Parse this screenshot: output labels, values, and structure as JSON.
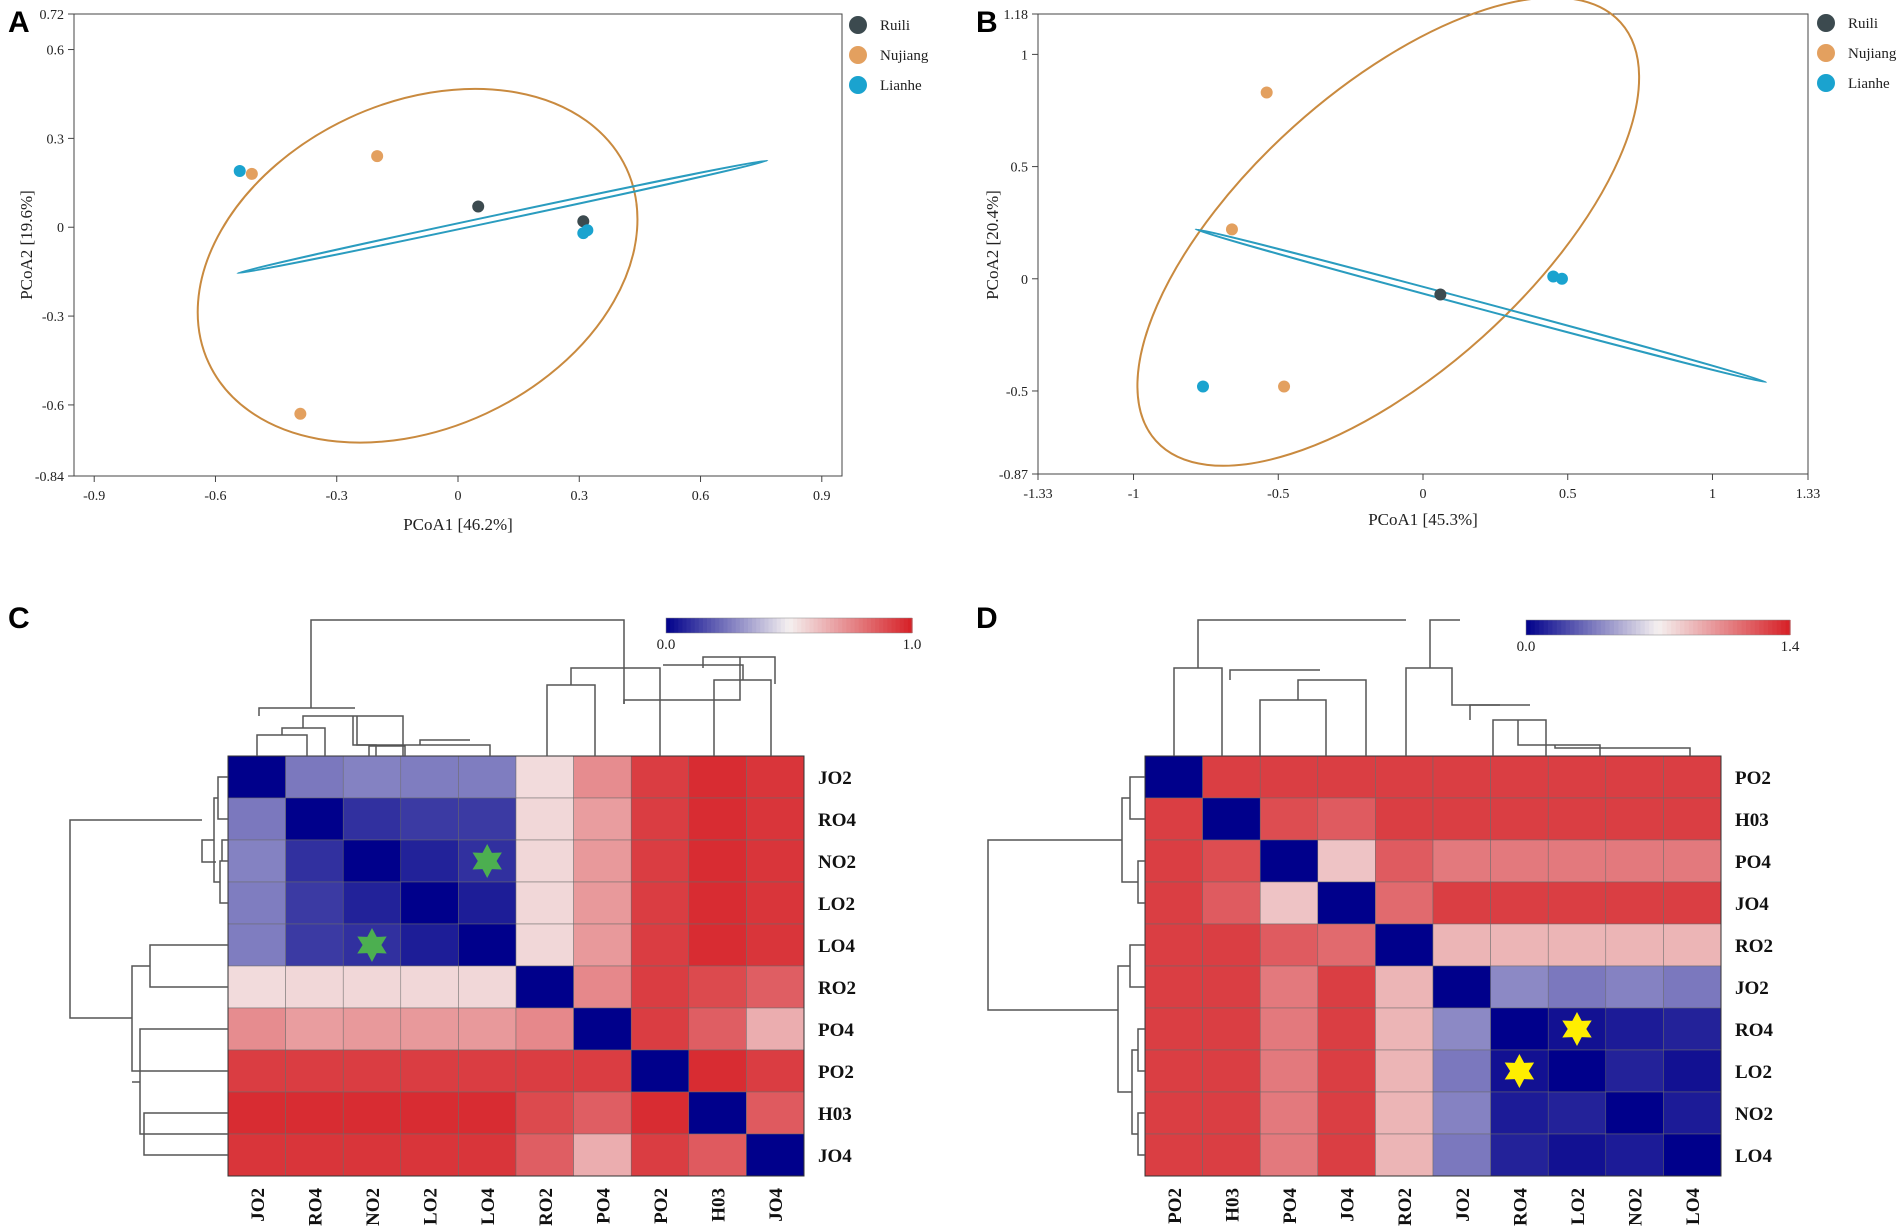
{
  "panels": {
    "a": "A",
    "b": "B",
    "c": "C",
    "d": "D"
  },
  "colors": {
    "Ruili": "#3c4a4f",
    "Nujiang": "#e3a05f",
    "Lianhe": "#1aa3cf",
    "ellipse_nujiang": "#c98a3f",
    "ellipse_lianhe": "#2a9cbf",
    "low": "#00008b",
    "mid": "#f5f0f0",
    "high": "#d62026"
  },
  "chart_data": [
    {
      "id": "A",
      "type": "scatter",
      "xlabel": "PCoA1 [46.2%]",
      "ylabel": "PCoA2 [19.6%]",
      "xlim": [
        -0.95,
        0.95
      ],
      "ylim": [
        -0.84,
        0.72
      ],
      "xticks": [
        "-0.9",
        "-0.6",
        "-0.3",
        "0",
        "0.3",
        "0.6",
        "0.9"
      ],
      "yticks": [
        "0.72",
        "0.6",
        "0.3",
        "0",
        "-0.3",
        "-0.6",
        "-0.84"
      ],
      "legend": [
        "Ruili",
        "Nujiang",
        "Lianhe"
      ],
      "series": [
        {
          "name": "Ruili",
          "points": [
            [
              0.05,
              0.07
            ],
            [
              0.31,
              0.02
            ]
          ]
        },
        {
          "name": "Nujiang",
          "points": [
            [
              -0.2,
              0.24
            ],
            [
              -0.51,
              0.18
            ],
            [
              -0.39,
              -0.63
            ]
          ]
        },
        {
          "name": "Lianhe",
          "points": [
            [
              -0.54,
              0.19
            ],
            [
              0.32,
              -0.01
            ],
            [
              0.31,
              -0.02
            ]
          ]
        }
      ],
      "ellipses": [
        {
          "name": "Nujiang",
          "cx": -0.1,
          "cy": -0.13,
          "rx": 0.57,
          "ry": 0.55,
          "angle": -25
        },
        {
          "name": "Lianhe",
          "cx": 0.11,
          "cy": 0.035,
          "rx": 0.67,
          "ry": 0.008,
          "angle": -12
        }
      ]
    },
    {
      "id": "B",
      "type": "scatter",
      "xlabel": "PCoA1 [45.3%]",
      "ylabel": "PCoA2 [20.4%]",
      "xlim": [
        -1.33,
        1.33
      ],
      "ylim": [
        -0.87,
        1.18
      ],
      "xticks": [
        "-1.33",
        "-1",
        "-0.5",
        "0",
        "0.5",
        "1",
        "1.33"
      ],
      "yticks": [
        "1.18",
        "1",
        "0.5",
        "0",
        "-0.5",
        "-0.87"
      ],
      "legend": [
        "Ruili",
        "Nujiang",
        "Lianhe"
      ],
      "series": [
        {
          "name": "Ruili",
          "points": [
            [
              0.06,
              -0.07
            ]
          ]
        },
        {
          "name": "Nujiang",
          "points": [
            [
              -0.54,
              0.83
            ],
            [
              -0.66,
              0.22
            ],
            [
              -0.48,
              -0.48
            ]
          ]
        },
        {
          "name": "Lianhe",
          "points": [
            [
              -0.76,
              -0.48
            ],
            [
              0.45,
              0.01
            ],
            [
              0.48,
              0.0
            ]
          ]
        }
      ],
      "ellipses": [
        {
          "name": "Nujiang",
          "cx": -0.12,
          "cy": 0.21,
          "rx": 1.08,
          "ry": 0.63,
          "angle": -42
        },
        {
          "name": "Lianhe",
          "cx": 0.2,
          "cy": -0.12,
          "rx": 1.02,
          "ry": 0.015,
          "angle": 15
        }
      ]
    },
    {
      "id": "C",
      "type": "heatmap",
      "colorbar": {
        "min": "0.0",
        "max": "1.0",
        "vmax": 1.0
      },
      "rows": [
        "JO2",
        "RO4",
        "NO2",
        "LO2",
        "LO4",
        "RO2",
        "PO4",
        "PO2",
        "H03",
        "JO4"
      ],
      "cols": [
        "JO2",
        "RO4",
        "NO2",
        "LO2",
        "LO4",
        "RO2",
        "PO4",
        "PO2",
        "H03",
        "JO4"
      ],
      "values": [
        [
          0.0,
          0.25,
          0.27,
          0.26,
          0.26,
          0.55,
          0.74,
          0.93,
          0.97,
          0.95
        ],
        [
          0.25,
          0.0,
          0.1,
          0.12,
          0.12,
          0.56,
          0.7,
          0.93,
          0.97,
          0.95
        ],
        [
          0.27,
          0.1,
          0.0,
          0.07,
          0.1,
          0.56,
          0.71,
          0.93,
          0.97,
          0.95
        ],
        [
          0.26,
          0.12,
          0.07,
          0.0,
          0.06,
          0.56,
          0.71,
          0.93,
          0.97,
          0.95
        ],
        [
          0.26,
          0.12,
          0.1,
          0.06,
          0.0,
          0.56,
          0.71,
          0.93,
          0.97,
          0.95
        ],
        [
          0.55,
          0.56,
          0.56,
          0.56,
          0.56,
          0.0,
          0.75,
          0.93,
          0.9,
          0.85
        ],
        [
          0.74,
          0.7,
          0.71,
          0.71,
          0.71,
          0.75,
          0.0,
          0.93,
          0.85,
          0.66
        ],
        [
          0.93,
          0.93,
          0.93,
          0.93,
          0.93,
          0.93,
          0.93,
          0.0,
          0.97,
          0.93
        ],
        [
          0.97,
          0.97,
          0.97,
          0.97,
          0.97,
          0.9,
          0.85,
          0.97,
          0.0,
          0.86
        ],
        [
          0.95,
          0.95,
          0.95,
          0.95,
          0.95,
          0.85,
          0.66,
          0.93,
          0.86,
          0.0
        ]
      ],
      "markers": [
        {
          "row": 2,
          "col": 4,
          "symbol": "star6",
          "color": "#4caf50"
        },
        {
          "row": 4,
          "col": 2,
          "symbol": "star6",
          "color": "#4caf50"
        }
      ]
    },
    {
      "id": "D",
      "type": "heatmap",
      "colorbar": {
        "min": "0.0",
        "max": "1.4",
        "vmax": 1.4
      },
      "rows": [
        "PO2",
        "H03",
        "PO4",
        "JO4",
        "RO2",
        "JO2",
        "RO4",
        "LO2",
        "NO2",
        "LO4"
      ],
      "cols": [
        "PO2",
        "H03",
        "PO4",
        "JO4",
        "RO2",
        "JO2",
        "RO4",
        "LO2",
        "NO2",
        "LO4"
      ],
      "values": [
        [
          0.0,
          1.3,
          1.3,
          1.3,
          1.3,
          1.3,
          1.3,
          1.3,
          1.3,
          1.3
        ],
        [
          1.3,
          0.0,
          1.25,
          1.2,
          1.3,
          1.3,
          1.3,
          1.3,
          1.3,
          1.3
        ],
        [
          1.3,
          1.25,
          0.0,
          0.85,
          1.2,
          1.1,
          1.1,
          1.1,
          1.1,
          1.1
        ],
        [
          1.3,
          1.2,
          0.85,
          0.0,
          1.15,
          1.3,
          1.3,
          1.3,
          1.3,
          1.3
        ],
        [
          1.3,
          1.3,
          1.2,
          1.15,
          0.0,
          0.9,
          0.9,
          0.9,
          0.9,
          0.9
        ],
        [
          1.3,
          1.3,
          1.1,
          1.3,
          0.9,
          0.0,
          0.4,
          0.35,
          0.38,
          0.35
        ],
        [
          1.3,
          1.3,
          1.1,
          1.3,
          0.9,
          0.4,
          0.0,
          0.05,
          0.08,
          0.1
        ],
        [
          1.3,
          1.3,
          1.1,
          1.3,
          0.9,
          0.35,
          0.05,
          0.0,
          0.1,
          0.05
        ],
        [
          1.3,
          1.3,
          1.1,
          1.3,
          0.9,
          0.38,
          0.08,
          0.1,
          0.0,
          0.08
        ],
        [
          1.3,
          1.3,
          1.1,
          1.3,
          0.9,
          0.35,
          0.1,
          0.05,
          0.08,
          0.0
        ]
      ],
      "markers": [
        {
          "row": 6,
          "col": 7,
          "symbol": "star6",
          "color": "#ffee00"
        },
        {
          "row": 7,
          "col": 6,
          "symbol": "star6",
          "color": "#ffee00"
        }
      ]
    }
  ]
}
